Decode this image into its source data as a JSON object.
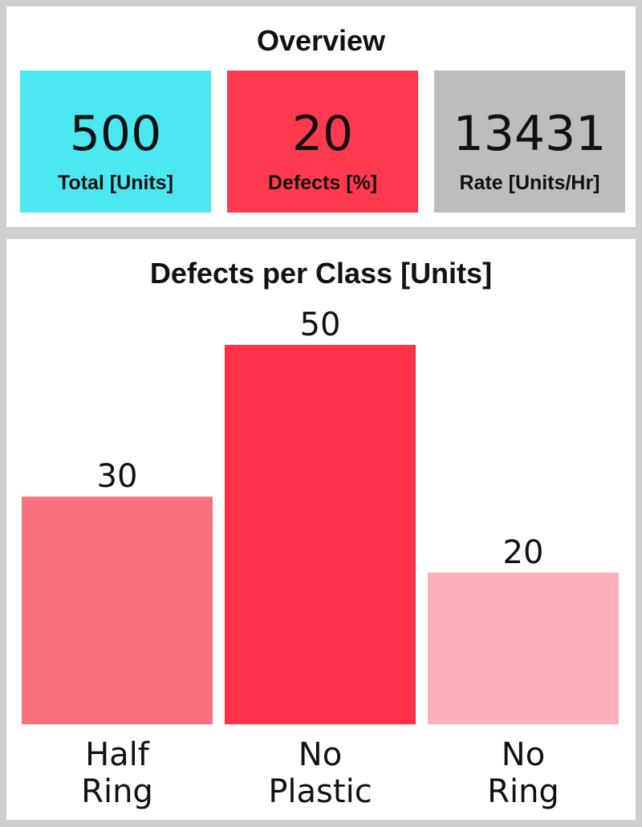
{
  "overview": {
    "title": "Overview",
    "cards": [
      {
        "value": 500,
        "label": "Total [Units]",
        "color": "#4ce8f2"
      },
      {
        "value": 20,
        "label": "Defects [%]",
        "color": "#ff3a4f"
      },
      {
        "value": 13431,
        "label": "Rate [Units/Hr]",
        "color": "#bdbdbd"
      }
    ]
  },
  "chart_data": {
    "type": "bar",
    "title": "Defects per Class [Units]",
    "categories": [
      "Half\nRing",
      "No\nPlastic",
      "No\nRing"
    ],
    "values": [
      30,
      50,
      20
    ],
    "colors": [
      "#f8737f",
      "#ff3249",
      "#fdb0ba"
    ]
  }
}
